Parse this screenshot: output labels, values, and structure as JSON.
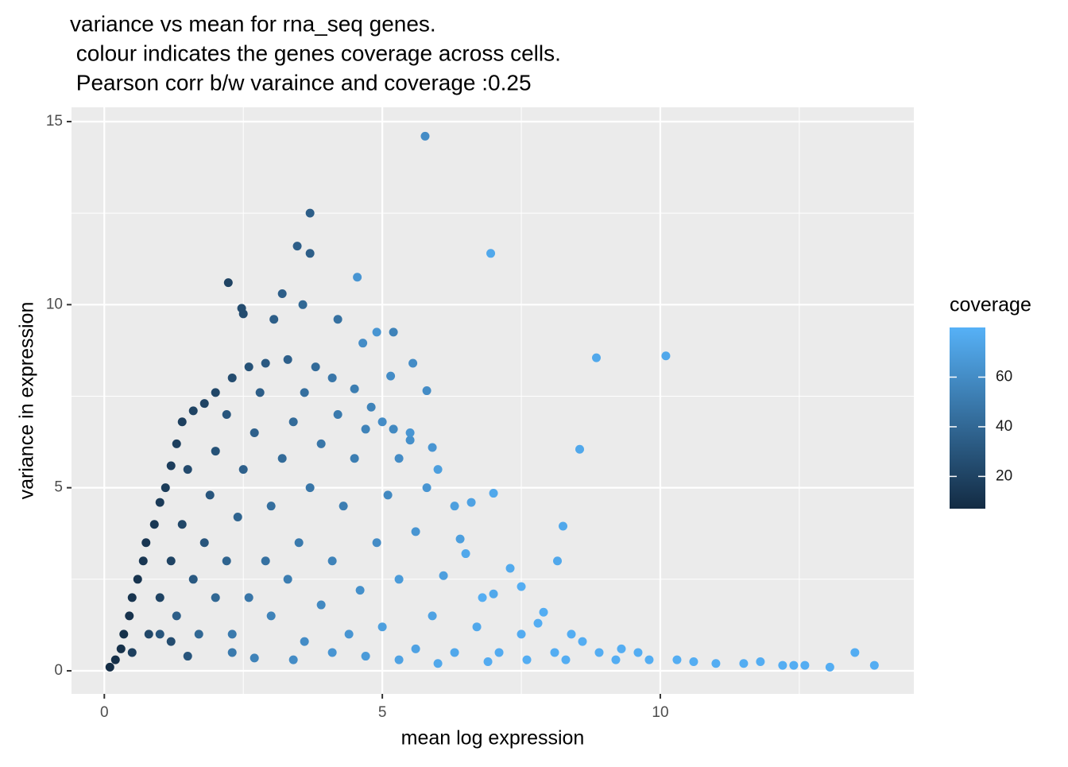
{
  "chart_data": {
    "type": "scatter",
    "title": [
      "variance vs mean for rna_seq genes.",
      " colour indicates the genes coverage across cells.",
      " Pearson corr b/w varaince and coverage :0.25"
    ],
    "x_label": "mean log expression",
    "y_label": "variance in expression",
    "xlim": [
      -0.59,
      14.56
    ],
    "ylim": [
      -0.63,
      15.39
    ],
    "xticks": [
      0,
      5,
      10
    ],
    "yticks": [
      0,
      5,
      10,
      15
    ],
    "x_minor_ticks": [
      2.5,
      7.5,
      12.5
    ],
    "y_minor_ticks": [
      2.5,
      7.5,
      12.5
    ],
    "grid": true,
    "legend_title": "coverage",
    "color_lim": [
      7,
      80
    ],
    "color_ticks": [
      20,
      40,
      60
    ],
    "low_color": "#132B43",
    "high_color": "#56B1F7",
    "x": [
      0.1,
      0.2,
      0.3,
      0.35,
      0.45,
      0.5,
      0.6,
      0.7,
      0.75,
      0.9,
      1.0,
      1.1,
      1.2,
      1.3,
      1.4,
      1.6,
      1.8,
      2.0,
      2.3,
      2.6,
      2.9,
      3.3,
      3.8,
      4.1,
      4.5,
      4.8,
      5.2,
      5.5,
      5.9,
      0.5,
      0.8,
      1.0,
      1.2,
      1.4,
      1.5,
      1.0,
      1.3,
      1.6,
      1.8,
      1.9,
      2.0,
      2.2,
      1.7,
      2.0,
      2.2,
      2.4,
      2.5,
      2.7,
      2.8,
      2.3,
      2.6,
      2.9,
      3.0,
      3.2,
      3.4,
      3.6,
      3.0,
      3.3,
      3.5,
      3.7,
      3.9,
      4.2,
      3.6,
      3.9,
      4.1,
      4.3,
      4.5,
      4.7,
      4.4,
      4.6,
      4.9,
      5.1,
      5.3,
      5.0,
      5.3,
      5.6,
      5.8,
      5.6,
      5.9,
      6.1,
      6.4,
      6.6,
      6.3,
      6.7,
      7.0,
      7.3,
      7.1,
      7.5,
      7.9,
      8.1,
      8.6,
      9.2,
      9.6,
      10.3,
      11.0,
      11.8,
      12.4,
      2.3,
      2.7,
      3.4,
      4.1,
      4.7,
      5.3,
      6.0,
      6.9,
      7.6,
      8.3,
      1.2,
      1.5,
      5.77,
      3.7,
      3.47,
      3.7,
      6.95,
      2.23,
      4.55,
      3.2,
      2.47,
      3.57,
      2.5,
      3.05,
      4.2,
      5.2,
      4.9,
      4.65,
      8.85,
      10.1,
      5.55,
      5.15,
      5.8,
      8.55,
      7.0,
      8.25,
      8.15,
      13.5,
      13.85,
      13.05,
      12.6,
      12.2,
      11.5,
      10.6,
      9.8,
      9.3,
      8.9,
      8.4,
      7.8,
      7.5,
      6.8,
      6.5,
      6.3,
      6.0,
      5.5,
      5.0
    ],
    "values": [
      0.1,
      0.3,
      0.6,
      1.0,
      1.5,
      2.0,
      2.5,
      3.0,
      3.5,
      4.0,
      4.6,
      5.0,
      5.6,
      6.2,
      6.8,
      7.1,
      7.3,
      7.6,
      8.0,
      8.3,
      8.4,
      8.5,
      8.3,
      8.0,
      7.7,
      7.2,
      6.6,
      6.3,
      6.1,
      0.5,
      1.0,
      2.0,
      3.0,
      4.0,
      5.5,
      1.0,
      1.5,
      2.5,
      3.5,
      4.8,
      6.0,
      7.0,
      1.0,
      2.0,
      3.0,
      4.2,
      5.5,
      6.5,
      7.6,
      1.0,
      2.0,
      3.0,
      4.5,
      5.8,
      6.8,
      7.6,
      1.5,
      2.5,
      3.5,
      5.0,
      6.2,
      7.0,
      0.8,
      1.8,
      3.0,
      4.5,
      5.8,
      6.6,
      1.0,
      2.2,
      3.5,
      4.8,
      5.8,
      1.2,
      2.5,
      3.8,
      5.0,
      0.6,
      1.5,
      2.6,
      3.6,
      4.6,
      0.5,
      1.2,
      2.1,
      2.8,
      0.5,
      1.0,
      1.6,
      0.5,
      0.8,
      0.3,
      0.5,
      0.3,
      0.2,
      0.25,
      0.15,
      0.5,
      0.35,
      0.3,
      0.5,
      0.4,
      0.3,
      0.2,
      0.25,
      0.3,
      0.3,
      0.8,
      0.4,
      14.6,
      12.5,
      11.6,
      11.4,
      11.4,
      10.6,
      10.75,
      10.3,
      9.9,
      10.0,
      9.75,
      9.6,
      9.6,
      9.25,
      9.25,
      8.95,
      8.55,
      8.6,
      8.4,
      8.05,
      7.65,
      6.05,
      4.85,
      3.95,
      3.0,
      0.5,
      0.15,
      0.1,
      0.15,
      0.15,
      0.2,
      0.25,
      0.3,
      0.6,
      0.5,
      1.0,
      1.3,
      2.3,
      2.0,
      3.2,
      4.5,
      5.5,
      6.5,
      6.8
    ],
    "coverage": [
      8,
      9,
      10,
      10,
      11,
      12,
      12,
      13,
      13,
      14,
      15,
      16,
      17,
      18,
      18,
      20,
      20,
      22,
      25,
      28,
      32,
      36,
      42,
      48,
      52,
      55,
      58,
      62,
      65,
      18,
      22,
      20,
      20,
      22,
      24,
      30,
      35,
      32,
      30,
      30,
      28,
      30,
      40,
      40,
      38,
      38,
      36,
      36,
      35,
      50,
      48,
      45,
      44,
      42,
      42,
      44,
      55,
      52,
      50,
      48,
      48,
      50,
      60,
      58,
      55,
      52,
      52,
      55,
      65,
      62,
      60,
      58,
      60,
      70,
      68,
      65,
      65,
      72,
      72,
      70,
      70,
      72,
      75,
      75,
      75,
      76,
      77,
      77,
      78,
      78,
      78,
      78,
      78,
      78,
      78,
      78,
      78,
      50,
      55,
      60,
      65,
      68,
      72,
      75,
      77,
      78,
      78,
      25,
      30,
      60,
      35,
      35,
      35,
      75,
      20,
      65,
      35,
      25,
      40,
      25,
      35,
      45,
      55,
      65,
      60,
      75,
      75,
      60,
      60,
      60,
      75,
      75,
      75,
      75,
      78,
      78,
      78,
      78,
      78,
      78,
      78,
      78,
      78,
      78,
      78,
      78,
      78,
      78,
      75,
      70,
      70,
      65,
      60
    ]
  }
}
